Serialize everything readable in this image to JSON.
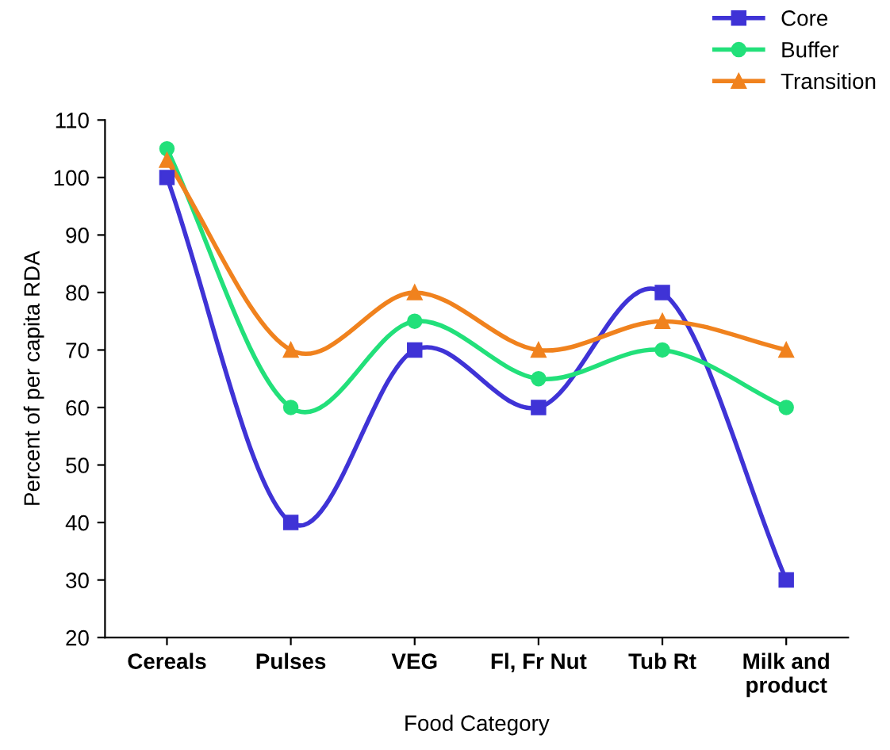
{
  "chart_data": {
    "type": "line",
    "xlabel": "Food Category",
    "ylabel": "Percent of per capita RDA",
    "categories": [
      "Cereals",
      "Pulses",
      "VEG",
      "Fl, Fr Nut",
      "Tub Rt",
      "Milk and\nproduct"
    ],
    "series": [
      {
        "name": "Core",
        "color": "#3f33d6",
        "marker": "square",
        "values": [
          100,
          40,
          70,
          60,
          80,
          30
        ]
      },
      {
        "name": "Buffer",
        "color": "#22e07a",
        "marker": "circle",
        "values": [
          105,
          60,
          75,
          65,
          70,
          60
        ]
      },
      {
        "name": "Transition",
        "color": "#f0821e",
        "marker": "triangle",
        "values": [
          103,
          70,
          80,
          70,
          75,
          70
        ]
      }
    ],
    "ylim": [
      20,
      110
    ],
    "yticks": [
      20,
      30,
      40,
      50,
      60,
      70,
      80,
      90,
      100,
      110
    ],
    "legend": "top right",
    "grid": false,
    "line_style": "solid"
  }
}
